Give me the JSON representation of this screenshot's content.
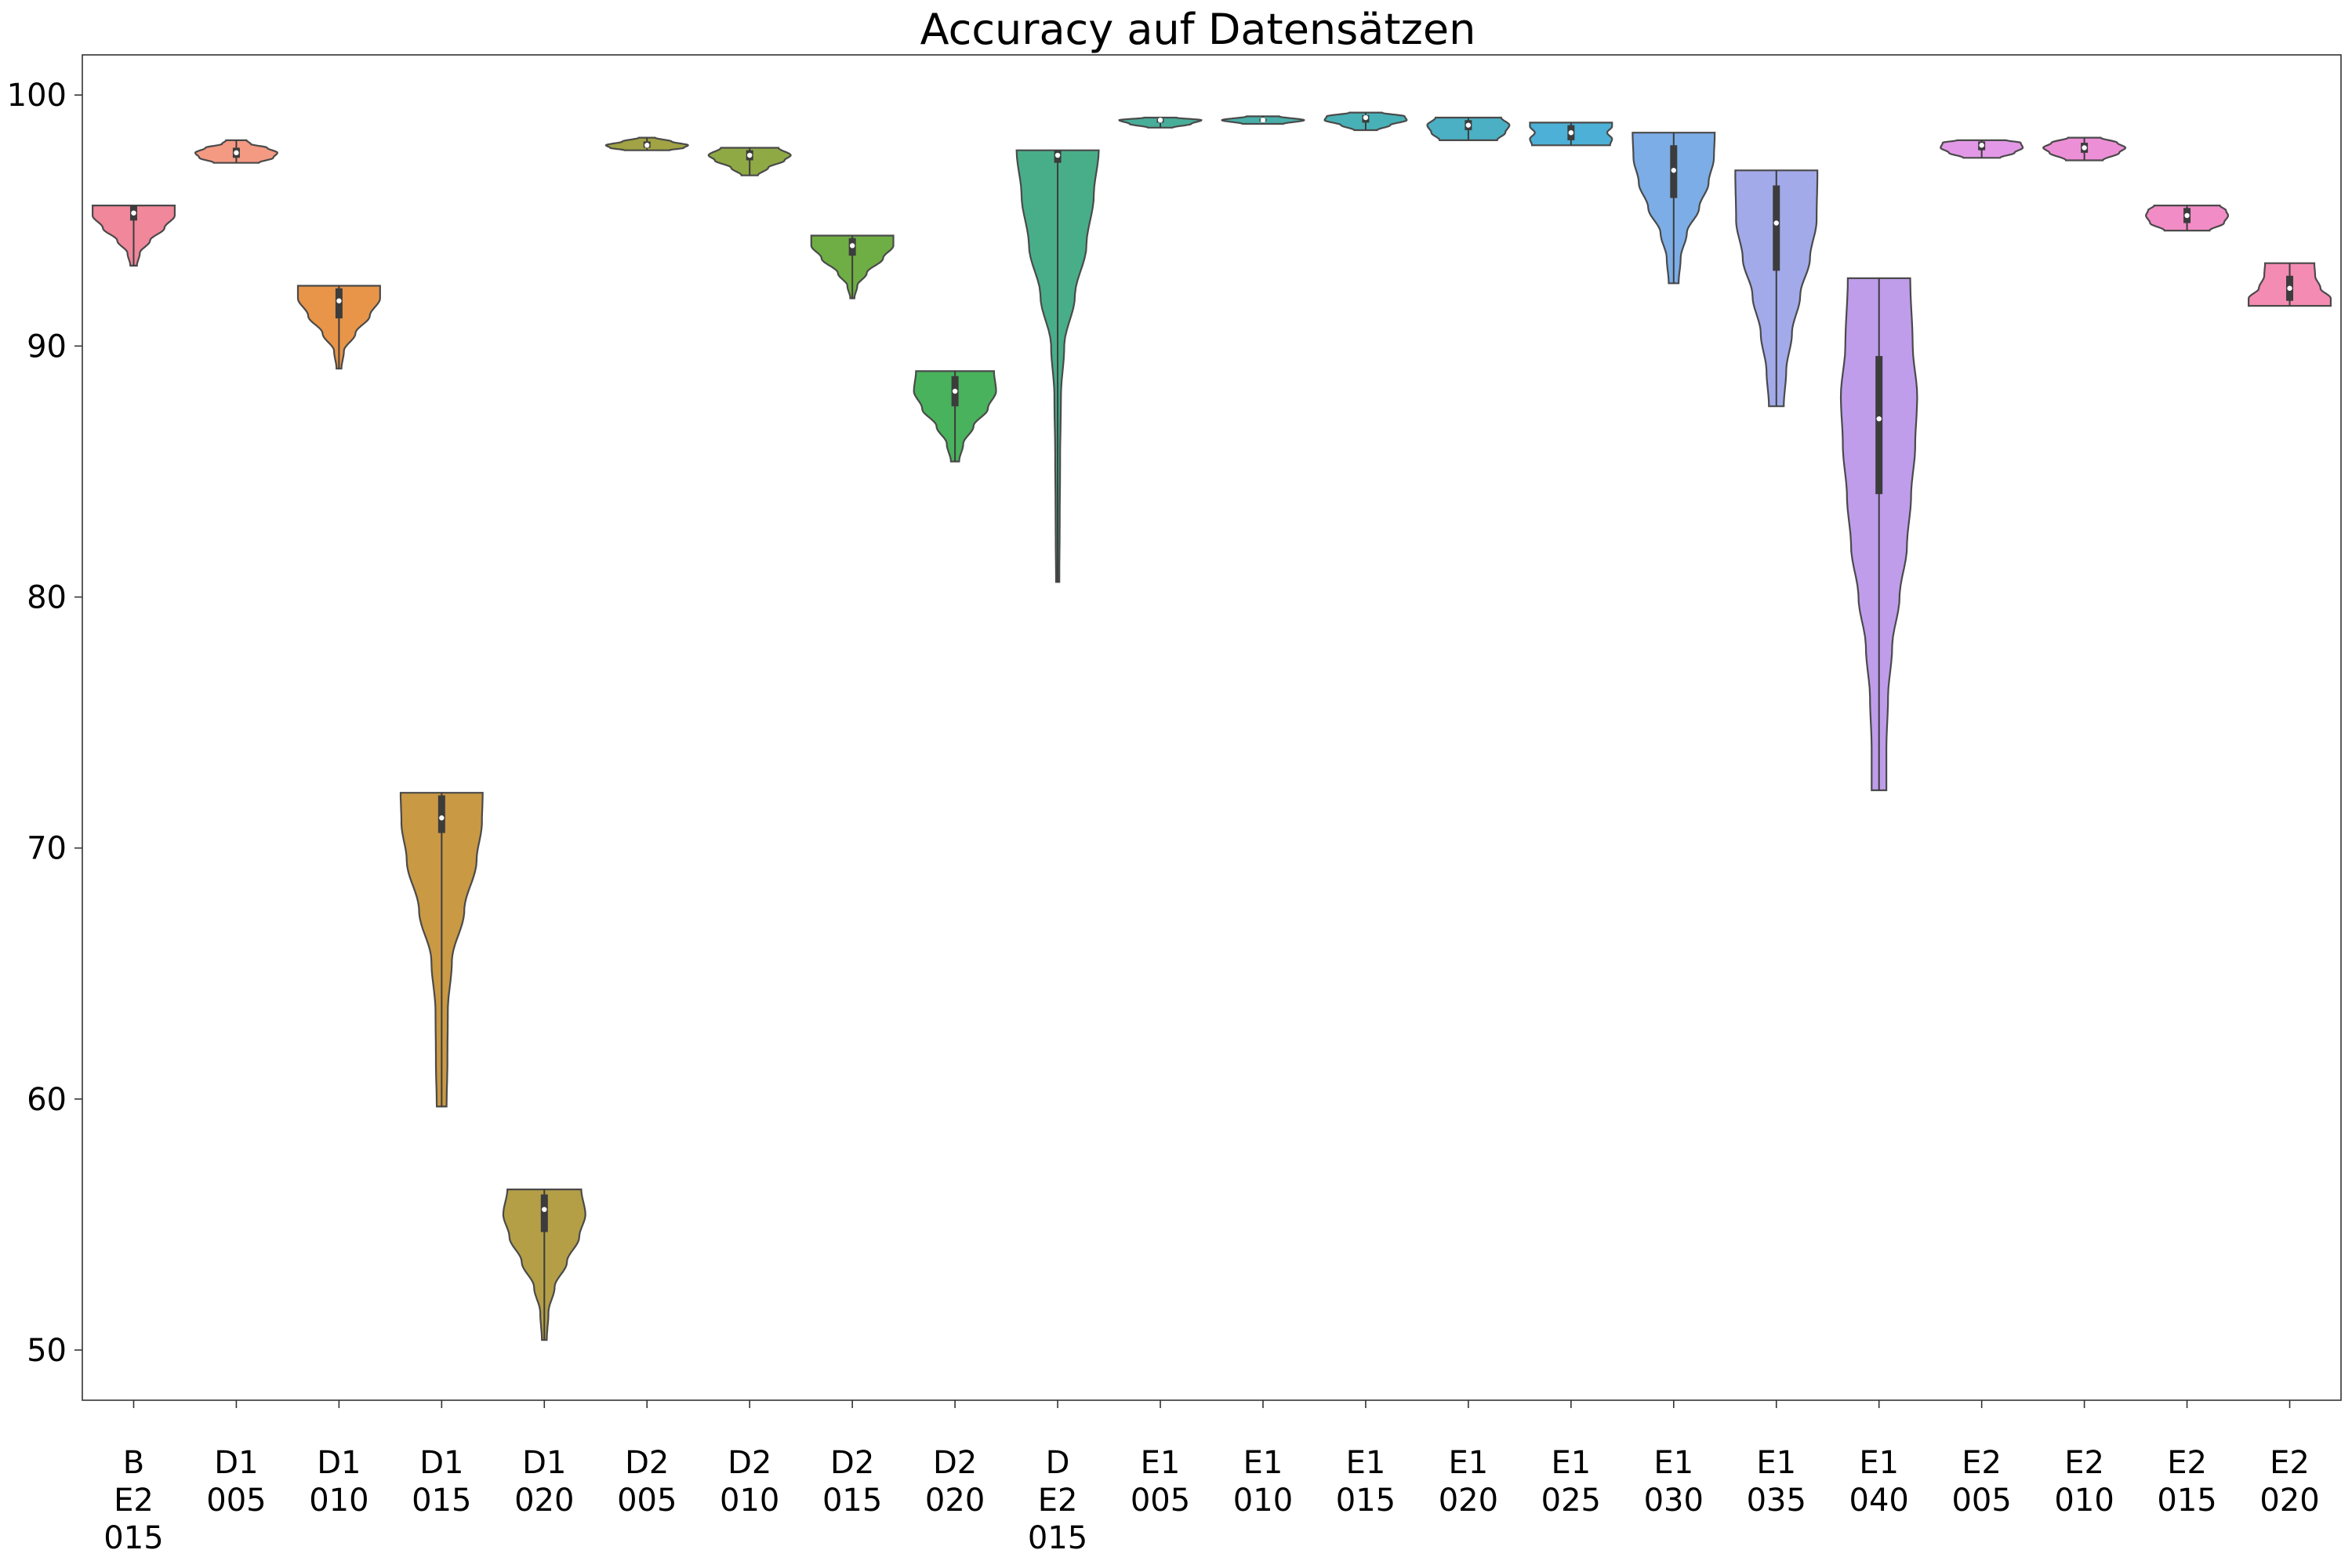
{
  "chart_data": {
    "type": "violin",
    "title": "Accuracy auf Datensätzen",
    "xlabel": "",
    "ylabel": "",
    "ylim": [
      48,
      101.6
    ],
    "yticks": [
      50,
      60,
      70,
      80,
      90,
      100
    ],
    "grid": false,
    "legend": "none",
    "categories": [
      [
        "B",
        "E2",
        "015"
      ],
      [
        "D1",
        "005"
      ],
      [
        "D1",
        "010"
      ],
      [
        "D1",
        "015"
      ],
      [
        "D1",
        "020"
      ],
      [
        "D2",
        "005"
      ],
      [
        "D2",
        "010"
      ],
      [
        "D2",
        "015"
      ],
      [
        "D2",
        "020"
      ],
      [
        "D",
        "E2",
        "015"
      ],
      [
        "E1",
        "005"
      ],
      [
        "E1",
        "010"
      ],
      [
        "E1",
        "015"
      ],
      [
        "E1",
        "020"
      ],
      [
        "E1",
        "025"
      ],
      [
        "E1",
        "030"
      ],
      [
        "E1",
        "035"
      ],
      [
        "E1",
        "040"
      ],
      [
        "E2",
        "005"
      ],
      [
        "E2",
        "010"
      ],
      [
        "E2",
        "015"
      ],
      [
        "E2",
        "020"
      ]
    ],
    "violins": [
      {
        "color": "#f1879a",
        "min": 93.2,
        "max": 95.6,
        "q1": 95.0,
        "median": 95.3,
        "q3": 95.6,
        "shape": [
          [
            93.2,
            0.08
          ],
          [
            93.7,
            0.15
          ],
          [
            94.2,
            0.4
          ],
          [
            94.7,
            0.75
          ],
          [
            95.2,
            1.0
          ],
          [
            95.6,
            1.0
          ]
        ]
      },
      {
        "color": "#f49a83",
        "min": 97.3,
        "max": 98.2,
        "q1": 97.5,
        "median": 97.7,
        "q3": 97.9,
        "shape": [
          [
            97.3,
            0.55
          ],
          [
            97.5,
            0.9
          ],
          [
            97.7,
            1.0
          ],
          [
            97.9,
            0.75
          ],
          [
            98.05,
            0.35
          ],
          [
            98.2,
            0.25
          ]
        ]
      },
      {
        "color": "#e89549",
        "min": 89.1,
        "max": 92.4,
        "q1": 91.1,
        "median": 91.8,
        "q3": 92.3,
        "shape": [
          [
            89.1,
            0.06
          ],
          [
            89.8,
            0.12
          ],
          [
            90.5,
            0.4
          ],
          [
            91.2,
            0.75
          ],
          [
            91.9,
            1.0
          ],
          [
            92.4,
            1.0
          ]
        ]
      },
      {
        "color": "#c99944",
        "min": 59.7,
        "max": 72.2,
        "q1": 70.6,
        "median": 71.2,
        "q3": 72.1,
        "shape": [
          [
            59.7,
            0.12
          ],
          [
            61.5,
            0.14
          ],
          [
            63.5,
            0.15
          ],
          [
            65.5,
            0.25
          ],
          [
            67.5,
            0.55
          ],
          [
            69.5,
            0.85
          ],
          [
            71.0,
            0.98
          ],
          [
            72.2,
            1.0
          ]
        ]
      },
      {
        "color": "#b49f47",
        "min": 50.4,
        "max": 56.4,
        "q1": 54.7,
        "median": 55.6,
        "q3": 56.2,
        "shape": [
          [
            50.4,
            0.06
          ],
          [
            51.5,
            0.1
          ],
          [
            52.5,
            0.25
          ],
          [
            53.5,
            0.55
          ],
          [
            54.5,
            0.85
          ],
          [
            55.4,
            1.0
          ],
          [
            56.4,
            0.9
          ]
        ]
      },
      {
        "color": "#a1a344",
        "min": 97.8,
        "max": 98.3,
        "q1": 97.9,
        "median": 98.0,
        "q3": 98.15,
        "shape": [
          [
            97.8,
            0.55
          ],
          [
            97.9,
            0.9
          ],
          [
            98.0,
            1.0
          ],
          [
            98.15,
            0.6
          ],
          [
            98.3,
            0.2
          ]
        ]
      },
      {
        "color": "#8faa45",
        "min": 96.8,
        "max": 97.9,
        "q1": 97.4,
        "median": 97.6,
        "q3": 97.8,
        "shape": [
          [
            96.8,
            0.2
          ],
          [
            97.1,
            0.45
          ],
          [
            97.4,
            0.85
          ],
          [
            97.6,
            1.0
          ],
          [
            97.9,
            0.7
          ]
        ]
      },
      {
        "color": "#6fae44",
        "min": 91.9,
        "max": 94.4,
        "q1": 93.6,
        "median": 94.0,
        "q3": 94.3,
        "shape": [
          [
            91.9,
            0.05
          ],
          [
            92.4,
            0.12
          ],
          [
            92.9,
            0.35
          ],
          [
            93.5,
            0.75
          ],
          [
            94.0,
            1.0
          ],
          [
            94.4,
            1.0
          ]
        ]
      },
      {
        "color": "#49b25c",
        "min": 85.4,
        "max": 89.0,
        "q1": 87.6,
        "median": 88.2,
        "q3": 88.8,
        "shape": [
          [
            85.4,
            0.1
          ],
          [
            86.1,
            0.2
          ],
          [
            86.8,
            0.45
          ],
          [
            87.5,
            0.8
          ],
          [
            88.2,
            1.0
          ],
          [
            89.0,
            0.95
          ]
        ]
      },
      {
        "color": "#48ae8a",
        "min": 80.6,
        "max": 97.8,
        "q1": 97.3,
        "median": 97.6,
        "q3": 97.8,
        "shape": [
          [
            80.6,
            0.04
          ],
          [
            83.0,
            0.05
          ],
          [
            85.5,
            0.06
          ],
          [
            88.0,
            0.08
          ],
          [
            90.0,
            0.16
          ],
          [
            92.0,
            0.42
          ],
          [
            94.0,
            0.7
          ],
          [
            96.0,
            0.88
          ],
          [
            97.8,
            1.0
          ]
        ]
      },
      {
        "color": "#48ae9a",
        "min": 98.7,
        "max": 99.1,
        "q1": 98.9,
        "median": 99.0,
        "q3": 99.05,
        "shape": [
          [
            98.7,
            0.3
          ],
          [
            98.85,
            0.75
          ],
          [
            99.0,
            1.0
          ],
          [
            99.1,
            0.4
          ]
        ]
      },
      {
        "color": "#49afa8",
        "min": 98.85,
        "max": 99.15,
        "q1": 98.95,
        "median": 99.0,
        "q3": 99.05,
        "shape": [
          [
            98.85,
            0.5
          ],
          [
            99.0,
            1.0
          ],
          [
            99.15,
            0.4
          ]
        ]
      },
      {
        "color": "#48b0b7",
        "min": 98.6,
        "max": 99.3,
        "q1": 98.9,
        "median": 99.1,
        "q3": 99.2,
        "shape": [
          [
            98.6,
            0.28
          ],
          [
            98.8,
            0.6
          ],
          [
            99.0,
            1.0
          ],
          [
            99.15,
            0.95
          ],
          [
            99.3,
            0.4
          ]
        ]
      },
      {
        "color": "#4bb0c4",
        "min": 98.2,
        "max": 99.1,
        "q1": 98.6,
        "median": 98.8,
        "q3": 99.0,
        "shape": [
          [
            98.2,
            0.7
          ],
          [
            98.5,
            0.9
          ],
          [
            98.8,
            1.0
          ],
          [
            99.1,
            0.8
          ]
        ]
      },
      {
        "color": "#4db0d6",
        "min": 98.0,
        "max": 98.9,
        "q1": 98.2,
        "median": 98.5,
        "q3": 98.8,
        "shape": [
          [
            98.0,
            0.95
          ],
          [
            98.25,
            1.0
          ],
          [
            98.5,
            0.88
          ],
          [
            98.75,
            1.0
          ],
          [
            98.9,
            1.0
          ]
        ]
      },
      {
        "color": "#7cade6",
        "min": 92.5,
        "max": 98.5,
        "q1": 95.9,
        "median": 97.0,
        "q3": 98.0,
        "shape": [
          [
            92.5,
            0.12
          ],
          [
            93.5,
            0.17
          ],
          [
            94.5,
            0.32
          ],
          [
            95.5,
            0.62
          ],
          [
            96.5,
            0.85
          ],
          [
            97.5,
            0.98
          ],
          [
            98.5,
            1.0
          ]
        ]
      },
      {
        "color": "#a3aaea",
        "min": 87.6,
        "max": 97.0,
        "q1": 93.0,
        "median": 94.9,
        "q3": 96.4,
        "shape": [
          [
            87.6,
            0.18
          ],
          [
            89.0,
            0.24
          ],
          [
            90.5,
            0.38
          ],
          [
            92.0,
            0.58
          ],
          [
            93.5,
            0.82
          ],
          [
            95.0,
            0.98
          ],
          [
            97.0,
            1.0
          ]
        ]
      },
      {
        "color": "#bf9deb",
        "min": 72.3,
        "max": 92.7,
        "q1": 84.1,
        "median": 87.1,
        "q3": 89.6,
        "shape": [
          [
            72.3,
            0.18
          ],
          [
            74.0,
            0.18
          ],
          [
            76.0,
            0.22
          ],
          [
            78.0,
            0.32
          ],
          [
            80.0,
            0.5
          ],
          [
            82.0,
            0.68
          ],
          [
            84.0,
            0.78
          ],
          [
            86.0,
            0.88
          ],
          [
            88.0,
            0.93
          ],
          [
            90.0,
            0.82
          ],
          [
            92.7,
            0.76
          ]
        ]
      },
      {
        "color": "#e398e7",
        "min": 97.5,
        "max": 98.2,
        "q1": 97.8,
        "median": 98.0,
        "q3": 98.15,
        "shape": [
          [
            97.5,
            0.45
          ],
          [
            97.7,
            0.8
          ],
          [
            97.9,
            1.0
          ],
          [
            98.1,
            0.95
          ],
          [
            98.2,
            0.6
          ]
        ]
      },
      {
        "color": "#ed8fd6",
        "min": 97.4,
        "max": 98.3,
        "q1": 97.7,
        "median": 97.9,
        "q3": 98.1,
        "shape": [
          [
            97.4,
            0.45
          ],
          [
            97.7,
            0.85
          ],
          [
            97.9,
            1.0
          ],
          [
            98.1,
            0.8
          ],
          [
            98.3,
            0.4
          ]
        ]
      },
      {
        "color": "#f18cc6",
        "min": 94.6,
        "max": 95.6,
        "q1": 94.9,
        "median": 95.2,
        "q3": 95.5,
        "shape": [
          [
            94.6,
            0.55
          ],
          [
            94.9,
            0.9
          ],
          [
            95.2,
            1.0
          ],
          [
            95.4,
            0.95
          ],
          [
            95.6,
            0.8
          ]
        ]
      },
      {
        "color": "#f48bb2",
        "min": 91.6,
        "max": 93.3,
        "q1": 91.8,
        "median": 92.3,
        "q3": 92.8,
        "shape": [
          [
            91.6,
            1.0
          ],
          [
            91.9,
            1.0
          ],
          [
            92.3,
            0.75
          ],
          [
            92.8,
            0.62
          ],
          [
            93.3,
            0.6
          ]
        ]
      }
    ]
  }
}
